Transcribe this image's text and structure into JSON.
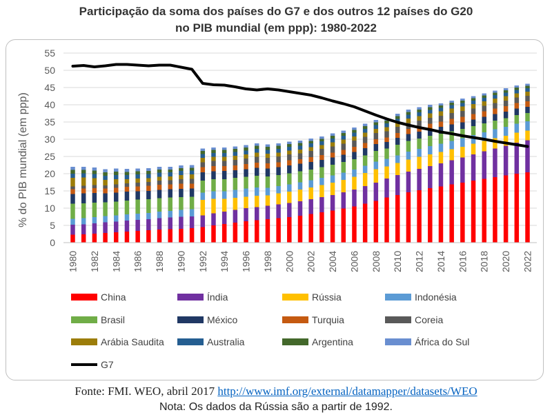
{
  "title_line1": "Participação da soma dos países do G7 e dos outros 12 países do G20",
  "title_line2": "no PIB mundial (em ppp): 1980-2022",
  "footer": {
    "source_prefix": "Fonte: FMI. WEO, abril 2017 ",
    "source_url": "http://www.imf.org/external/datamapper/datasets/WEO",
    "note": "Nota: Os dados da Rússia são a partir de 1992."
  },
  "chart_data": {
    "type": "bar",
    "stacked": true,
    "ylabel": "% do PIB mundial (em ppp)",
    "ylim": [
      0,
      55
    ],
    "yticks": [
      0,
      5,
      10,
      15,
      20,
      25,
      30,
      35,
      40,
      45,
      50,
      55
    ],
    "grid": true,
    "legend_position": "bottom",
    "x": [
      1980,
      1981,
      1982,
      1983,
      1984,
      1985,
      1986,
      1987,
      1988,
      1989,
      1990,
      1991,
      1992,
      1993,
      1994,
      1995,
      1996,
      1997,
      1998,
      1999,
      2000,
      2001,
      2002,
      2003,
      2004,
      2005,
      2006,
      2007,
      2008,
      2009,
      2010,
      2011,
      2012,
      2013,
      2014,
      2015,
      2016,
      2017,
      2018,
      2019,
      2020,
      2021,
      2022
    ],
    "series": [
      {
        "name": "China",
        "color": "#ff0000",
        "values": [
          2.3,
          2.4,
          2.6,
          2.8,
          3.0,
          3.2,
          3.4,
          3.6,
          3.8,
          3.9,
          4.0,
          4.2,
          4.5,
          5.0,
          5.4,
          5.8,
          6.2,
          6.5,
          6.8,
          7.1,
          7.4,
          7.8,
          8.3,
          8.8,
          9.3,
          9.9,
          10.5,
          11.3,
          12.1,
          13.1,
          13.8,
          14.6,
          15.2,
          15.8,
          16.3,
          16.9,
          17.4,
          18.0,
          18.5,
          19.0,
          19.5,
          20.0,
          20.4
        ]
      },
      {
        "name": "Índia",
        "color": "#7030a0",
        "values": [
          2.9,
          2.9,
          3.0,
          3.1,
          3.1,
          3.2,
          3.2,
          3.2,
          3.3,
          3.4,
          3.5,
          3.4,
          3.4,
          3.5,
          3.6,
          3.7,
          3.8,
          3.8,
          3.9,
          4.0,
          4.1,
          4.2,
          4.3,
          4.4,
          4.5,
          4.7,
          4.9,
          5.1,
          5.3,
          5.5,
          5.8,
          6.0,
          6.2,
          6.4,
          6.7,
          7.0,
          7.3,
          7.6,
          8.0,
          8.3,
          8.6,
          9.0,
          9.3
        ]
      },
      {
        "name": "Rússia",
        "color": "#ffc000",
        "values": [
          0,
          0,
          0,
          0,
          0,
          0,
          0,
          0,
          0,
          0,
          0,
          0,
          4.5,
          4.2,
          3.7,
          3.5,
          3.3,
          3.3,
          3.0,
          3.2,
          3.3,
          3.4,
          3.4,
          3.5,
          3.6,
          3.6,
          3.7,
          3.8,
          3.9,
          3.5,
          3.5,
          3.5,
          3.5,
          3.4,
          3.3,
          3.2,
          3.1,
          3.1,
          3.0,
          3.0,
          2.9,
          2.9,
          2.8
        ]
      },
      {
        "name": "Indonésia",
        "color": "#5b9bd5",
        "values": [
          1.7,
          1.8,
          1.8,
          1.8,
          1.8,
          1.8,
          1.8,
          1.8,
          1.9,
          1.9,
          2.0,
          2.1,
          2.1,
          2.2,
          2.2,
          2.3,
          2.4,
          2.4,
          2.2,
          2.1,
          2.1,
          2.1,
          2.1,
          2.1,
          2.1,
          2.1,
          2.1,
          2.1,
          2.2,
          2.2,
          2.2,
          2.3,
          2.3,
          2.4,
          2.4,
          2.4,
          2.5,
          2.5,
          2.5,
          2.6,
          2.6,
          2.6,
          2.7
        ]
      },
      {
        "name": "Brasil",
        "color": "#70ad47",
        "values": [
          4.4,
          4.3,
          4.2,
          4.0,
          4.0,
          4.0,
          4.1,
          4.0,
          3.9,
          3.9,
          3.7,
          3.6,
          3.5,
          3.5,
          3.5,
          3.5,
          3.4,
          3.4,
          3.3,
          3.2,
          3.2,
          3.2,
          3.1,
          3.1,
          3.1,
          3.1,
          3.0,
          3.0,
          3.1,
          3.0,
          3.1,
          3.1,
          3.0,
          3.0,
          2.9,
          2.8,
          2.7,
          2.6,
          2.6,
          2.5,
          2.5,
          2.5,
          2.4
        ]
      },
      {
        "name": "México",
        "color": "#203864",
        "values": [
          2.8,
          2.9,
          2.8,
          2.6,
          2.6,
          2.6,
          2.4,
          2.4,
          2.4,
          2.4,
          2.4,
          2.4,
          2.4,
          2.3,
          2.4,
          2.2,
          2.2,
          2.3,
          2.3,
          2.3,
          2.3,
          2.2,
          2.2,
          2.1,
          2.1,
          2.1,
          2.1,
          2.1,
          2.0,
          1.9,
          2.0,
          2.0,
          2.0,
          2.0,
          2.0,
          2.0,
          1.9,
          1.9,
          1.9,
          1.9,
          1.9,
          1.9,
          1.8
        ]
      },
      {
        "name": "Turquia",
        "color": "#c55a11",
        "values": [
          1.4,
          1.4,
          1.4,
          1.4,
          1.4,
          1.4,
          1.4,
          1.5,
          1.5,
          1.4,
          1.5,
          1.4,
          1.5,
          1.5,
          1.4,
          1.4,
          1.5,
          1.5,
          1.5,
          1.4,
          1.5,
          1.3,
          1.4,
          1.4,
          1.4,
          1.4,
          1.5,
          1.5,
          1.4,
          1.3,
          1.4,
          1.5,
          1.5,
          1.5,
          1.5,
          1.6,
          1.6,
          1.6,
          1.6,
          1.6,
          1.6,
          1.6,
          1.6
        ]
      },
      {
        "name": "Coreia",
        "color": "#595959",
        "values": [
          0.8,
          0.8,
          0.9,
          0.9,
          1.0,
          1.0,
          1.1,
          1.1,
          1.2,
          1.2,
          1.3,
          1.4,
          1.4,
          1.5,
          1.5,
          1.6,
          1.6,
          1.7,
          1.6,
          1.7,
          1.7,
          1.7,
          1.8,
          1.8,
          1.8,
          1.8,
          1.8,
          1.8,
          1.8,
          1.8,
          1.8,
          1.7,
          1.7,
          1.7,
          1.7,
          1.7,
          1.7,
          1.6,
          1.6,
          1.6,
          1.6,
          1.6,
          1.6
        ]
      },
      {
        "name": "Arábia Saudita",
        "color": "#9c7d0a",
        "values": [
          2.5,
          2.4,
          2.0,
          1.6,
          1.5,
          1.2,
          1.2,
          1.1,
          1.1,
          1.1,
          1.2,
          1.3,
          1.3,
          1.2,
          1.2,
          1.2,
          1.2,
          1.2,
          1.2,
          1.1,
          1.1,
          1.1,
          1.1,
          1.1,
          1.2,
          1.2,
          1.2,
          1.2,
          1.2,
          1.2,
          1.2,
          1.3,
          1.3,
          1.3,
          1.3,
          1.3,
          1.3,
          1.3,
          1.3,
          1.3,
          1.3,
          1.2,
          1.2
        ]
      },
      {
        "name": "Australia",
        "color": "#255e91",
        "values": [
          1.2,
          1.2,
          1.2,
          1.2,
          1.2,
          1.2,
          1.2,
          1.2,
          1.2,
          1.2,
          1.2,
          1.1,
          1.1,
          1.1,
          1.1,
          1.1,
          1.1,
          1.1,
          1.1,
          1.1,
          1.1,
          1.1,
          1.1,
          1.1,
          1.1,
          1.1,
          1.1,
          1.1,
          1.1,
          1.1,
          1.1,
          1.1,
          1.1,
          1.0,
          1.0,
          1.0,
          1.0,
          1.0,
          1.0,
          1.0,
          1.0,
          1.0,
          1.0
        ]
      },
      {
        "name": "Argentina",
        "color": "#43682b",
        "values": [
          1.1,
          1.0,
          1.0,
          1.0,
          1.0,
          0.9,
          0.9,
          0.9,
          0.9,
          0.8,
          0.8,
          0.8,
          0.9,
          0.9,
          0.9,
          0.9,
          0.9,
          0.9,
          0.9,
          0.9,
          0.8,
          0.8,
          0.7,
          0.7,
          0.8,
          0.8,
          0.8,
          0.8,
          0.8,
          0.8,
          0.8,
          0.8,
          0.8,
          0.8,
          0.7,
          0.7,
          0.7,
          0.7,
          0.7,
          0.7,
          0.7,
          0.7,
          0.7
        ]
      },
      {
        "name": "África do Sul",
        "color": "#698ed0",
        "values": [
          0.9,
          0.9,
          0.9,
          0.9,
          0.9,
          0.9,
          0.8,
          0.8,
          0.8,
          0.8,
          0.8,
          0.8,
          0.7,
          0.7,
          0.7,
          0.7,
          0.7,
          0.7,
          0.7,
          0.7,
          0.7,
          0.7,
          0.7,
          0.7,
          0.7,
          0.7,
          0.7,
          0.7,
          0.7,
          0.7,
          0.7,
          0.7,
          0.7,
          0.7,
          0.6,
          0.6,
          0.6,
          0.6,
          0.6,
          0.6,
          0.6,
          0.6,
          0.6
        ]
      }
    ],
    "line": {
      "name": "G7",
      "color": "#000000",
      "values": [
        51.2,
        51.4,
        51.0,
        51.3,
        51.7,
        51.7,
        51.5,
        51.3,
        51.5,
        51.5,
        50.9,
        50.3,
        46.2,
        45.8,
        45.7,
        45.2,
        44.6,
        44.3,
        44.6,
        44.3,
        43.8,
        43.3,
        42.8,
        42.0,
        41.1,
        40.3,
        39.4,
        38.2,
        37.0,
        35.9,
        34.9,
        34.1,
        33.4,
        32.8,
        32.1,
        31.6,
        31.0,
        30.5,
        30.0,
        29.4,
        28.9,
        28.4,
        27.9
      ]
    }
  }
}
